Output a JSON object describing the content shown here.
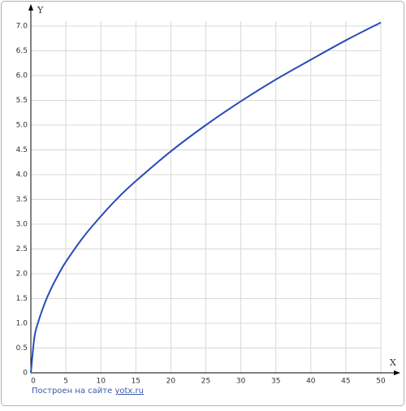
{
  "chart_data": {
    "type": "line",
    "axis_labels": {
      "x": "X",
      "y": "Y"
    },
    "x": [
      0,
      0.5,
      1,
      2,
      3,
      4,
      5,
      7.5,
      10,
      12.5,
      15,
      20,
      25,
      30,
      35,
      40,
      45,
      50
    ],
    "values": [
      0,
      0.71,
      1,
      1.41,
      1.73,
      2,
      2.24,
      2.74,
      3.16,
      3.54,
      3.87,
      4.47,
      5,
      5.48,
      5.92,
      6.32,
      6.71,
      7.07
    ],
    "color": "#2a4db5",
    "xlim": [
      0,
      50
    ],
    "ylim": [
      0,
      7
    ],
    "xticks": [
      0,
      5,
      10,
      15,
      20,
      25,
      30,
      35,
      40,
      45,
      50
    ],
    "yticks": [
      0,
      0.5,
      {
        "value": 1,
        "label": "1.0"
      },
      1.5,
      {
        "value": 2,
        "label": "2.0"
      },
      2.5,
      {
        "value": 3,
        "label": "3.0"
      },
      3.5,
      {
        "value": 4,
        "label": "4.0"
      },
      4.5,
      {
        "value": 5,
        "label": "5.0"
      },
      5.5,
      {
        "value": 6,
        "label": "6.0"
      },
      6.5,
      {
        "value": 7,
        "label": "7.0"
      }
    ],
    "grid": true
  },
  "footer": {
    "text": "Построен на сайте",
    "link": "yotx.ru"
  }
}
